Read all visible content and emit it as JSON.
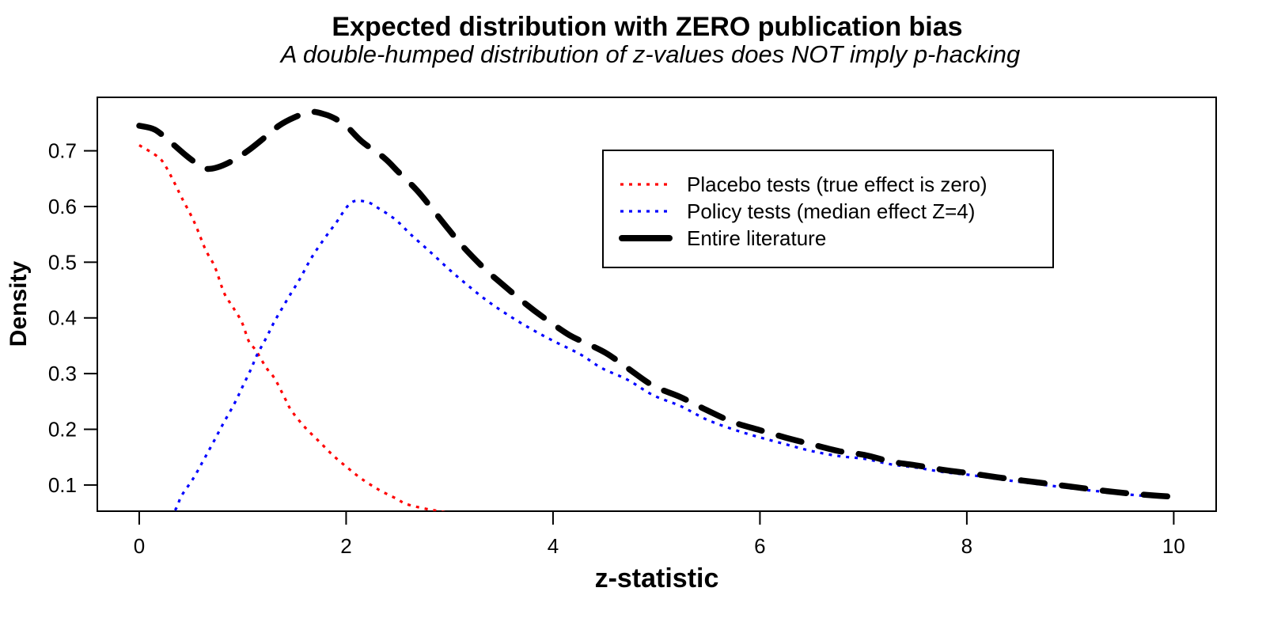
{
  "chart_data": {
    "type": "line",
    "title": "Expected distribution with ZERO publication bias",
    "subtitle": "A double-humped distribution of z-values does NOT imply p-hacking",
    "xlabel": "z-statistic",
    "ylabel": "Density",
    "x_ticks": [
      "0",
      "2",
      "4",
      "6",
      "8",
      "10"
    ],
    "y_ticks": [
      "0.1",
      "0.2",
      "0.3",
      "0.4",
      "0.5",
      "0.6",
      "0.7"
    ],
    "xlim": [
      -0.405,
      10.41
    ],
    "ylim": [
      0.053,
      0.796
    ],
    "grid": false,
    "background": "#ffffff",
    "legend": {
      "position": "top-right"
    },
    "series": [
      {
        "id": "placebo",
        "name": "Placebo tests (true effect is zero)",
        "color": "#FF0000",
        "style": "dotted",
        "points": [
          [
            0,
            0.71
          ],
          [
            0.16,
            0.692
          ],
          [
            0.24,
            0.677
          ],
          [
            0.35,
            0.639
          ],
          [
            0.41,
            0.616
          ],
          [
            0.53,
            0.573
          ],
          [
            0.64,
            0.523
          ],
          [
            0.73,
            0.492
          ],
          [
            0.82,
            0.445
          ],
          [
            0.9,
            0.421
          ],
          [
            0.99,
            0.393
          ],
          [
            1.06,
            0.358
          ],
          [
            1.13,
            0.341
          ],
          [
            1.23,
            0.31
          ],
          [
            1.31,
            0.291
          ],
          [
            1.41,
            0.255
          ],
          [
            1.47,
            0.234
          ],
          [
            1.59,
            0.206
          ],
          [
            1.74,
            0.178
          ],
          [
            1.88,
            0.152
          ],
          [
            2.02,
            0.13
          ],
          [
            2.15,
            0.111
          ],
          [
            2.31,
            0.092
          ],
          [
            2.48,
            0.076
          ],
          [
            2.58,
            0.066
          ],
          [
            2.75,
            0.058
          ],
          [
            2.9,
            0.053
          ],
          [
            3.05,
            0.048
          ],
          [
            3.2,
            0.044
          ]
        ]
      },
      {
        "id": "policy",
        "name": "Policy tests (median effect Z=4)",
        "color": "#0000FF",
        "style": "dotted",
        "points": [
          [
            0,
            0.012
          ],
          [
            0.2,
            0.03
          ],
          [
            0.34,
            0.053
          ],
          [
            0.41,
            0.081
          ],
          [
            0.52,
            0.111
          ],
          [
            0.62,
            0.144
          ],
          [
            0.72,
            0.178
          ],
          [
            0.82,
            0.213
          ],
          [
            0.92,
            0.246
          ],
          [
            1.0,
            0.277
          ],
          [
            1.08,
            0.308
          ],
          [
            1.14,
            0.334
          ],
          [
            1.23,
            0.365
          ],
          [
            1.3,
            0.391
          ],
          [
            1.38,
            0.417
          ],
          [
            1.47,
            0.445
          ],
          [
            1.55,
            0.469
          ],
          [
            1.64,
            0.5
          ],
          [
            1.71,
            0.521
          ],
          [
            1.8,
            0.545
          ],
          [
            1.9,
            0.57
          ],
          [
            2.05,
            0.607
          ],
          [
            2.2,
            0.608
          ],
          [
            2.32,
            0.596
          ],
          [
            2.48,
            0.576
          ],
          [
            2.63,
            0.549
          ],
          [
            2.81,
            0.519
          ],
          [
            2.99,
            0.488
          ],
          [
            3.14,
            0.464
          ],
          [
            3.34,
            0.434
          ],
          [
            3.55,
            0.407
          ],
          [
            3.78,
            0.381
          ],
          [
            4.01,
            0.358
          ],
          [
            4.26,
            0.335
          ],
          [
            4.47,
            0.31
          ],
          [
            4.72,
            0.289
          ],
          [
            4.97,
            0.261
          ],
          [
            5.23,
            0.242
          ],
          [
            5.48,
            0.218
          ],
          [
            5.74,
            0.2
          ],
          [
            5.99,
            0.186
          ],
          [
            6.25,
            0.173
          ],
          [
            6.5,
            0.161
          ],
          [
            6.76,
            0.152
          ],
          [
            7.01,
            0.147
          ],
          [
            7.27,
            0.137
          ],
          [
            7.52,
            0.131
          ],
          [
            7.78,
            0.123
          ],
          [
            8.03,
            0.118
          ],
          [
            8.29,
            0.111
          ],
          [
            8.54,
            0.105
          ],
          [
            8.8,
            0.099
          ],
          [
            9.05,
            0.093
          ],
          [
            9.31,
            0.088
          ],
          [
            9.56,
            0.083
          ],
          [
            9.82,
            0.079
          ],
          [
            10,
            0.077
          ]
        ]
      },
      {
        "id": "entire",
        "name": "Entire literature",
        "color": "#000000",
        "style": "dashed",
        "points": [
          [
            0,
            0.745
          ],
          [
            0.15,
            0.738
          ],
          [
            0.3,
            0.716
          ],
          [
            0.45,
            0.692
          ],
          [
            0.55,
            0.678
          ],
          [
            0.64,
            0.668
          ],
          [
            0.75,
            0.67
          ],
          [
            0.9,
            0.682
          ],
          [
            1.05,
            0.7
          ],
          [
            1.2,
            0.722
          ],
          [
            1.35,
            0.745
          ],
          [
            1.5,
            0.76
          ],
          [
            1.66,
            0.77
          ],
          [
            1.8,
            0.765
          ],
          [
            1.89,
            0.758
          ],
          [
            2.0,
            0.745
          ],
          [
            2.15,
            0.717
          ],
          [
            2.37,
            0.687
          ],
          [
            2.5,
            0.663
          ],
          [
            2.68,
            0.63
          ],
          [
            2.81,
            0.601
          ],
          [
            2.99,
            0.559
          ],
          [
            3.14,
            0.526
          ],
          [
            3.34,
            0.488
          ],
          [
            3.5,
            0.462
          ],
          [
            3.73,
            0.426
          ],
          [
            3.93,
            0.398
          ],
          [
            4.16,
            0.369
          ],
          [
            4.34,
            0.353
          ],
          [
            4.52,
            0.336
          ],
          [
            4.72,
            0.31
          ],
          [
            4.97,
            0.278
          ],
          [
            5.23,
            0.258
          ],
          [
            5.48,
            0.235
          ],
          [
            5.74,
            0.213
          ],
          [
            5.99,
            0.199
          ],
          [
            6.25,
            0.185
          ],
          [
            6.5,
            0.173
          ],
          [
            6.76,
            0.161
          ],
          [
            7.01,
            0.154
          ],
          [
            7.27,
            0.142
          ],
          [
            7.52,
            0.135
          ],
          [
            7.78,
            0.127
          ],
          [
            8.03,
            0.121
          ],
          [
            8.29,
            0.114
          ],
          [
            8.54,
            0.108
          ],
          [
            8.8,
            0.102
          ],
          [
            9.05,
            0.096
          ],
          [
            9.31,
            0.09
          ],
          [
            9.56,
            0.085
          ],
          [
            9.82,
            0.081
          ],
          [
            10,
            0.079
          ]
        ]
      }
    ]
  }
}
